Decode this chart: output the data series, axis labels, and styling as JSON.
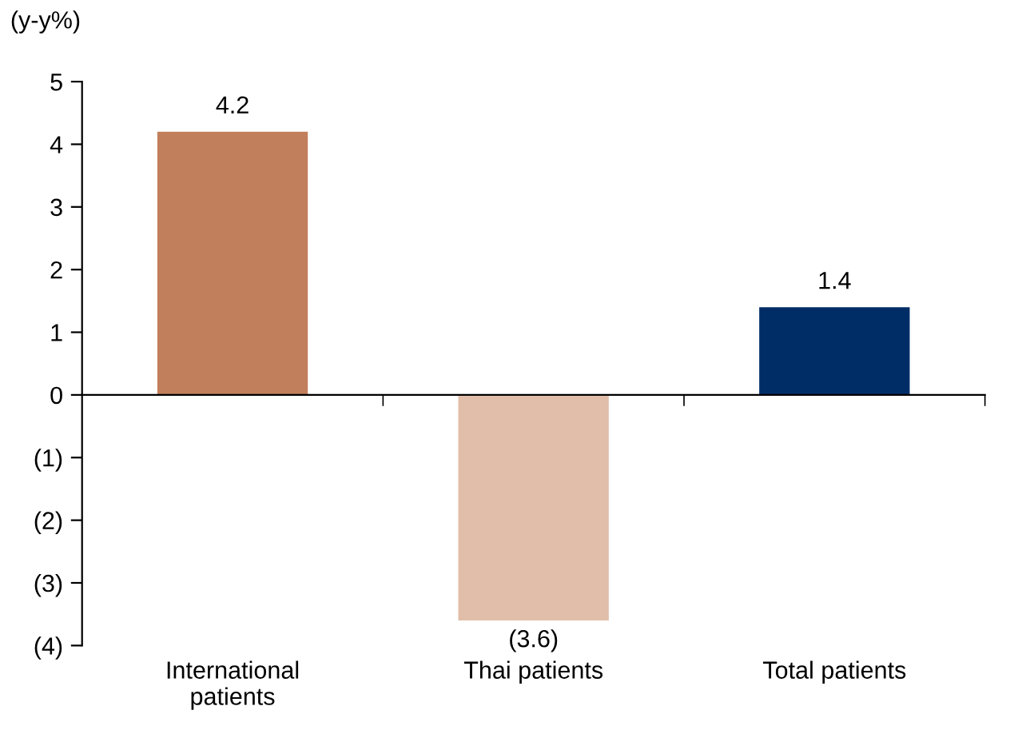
{
  "chart_data": {
    "type": "bar",
    "ylabel": "(y-y%)",
    "categories": [
      "International\npatients",
      "Thai patients",
      "Total patients"
    ],
    "values": [
      4.2,
      -3.6,
      1.4
    ],
    "colors": [
      "#c17f5b",
      "#e1bea9",
      "#002d66"
    ],
    "value_labels": [
      "4.2",
      "(3.6)",
      "1.4"
    ],
    "ylim": [
      -4,
      5
    ],
    "yticks": [
      {
        "value": -4,
        "label": "(4)"
      },
      {
        "value": -3,
        "label": "(3)"
      },
      {
        "value": -2,
        "label": "(2)"
      },
      {
        "value": -1,
        "label": "(1)"
      },
      0,
      1,
      2,
      3,
      4,
      5
    ],
    "legend": false
  }
}
